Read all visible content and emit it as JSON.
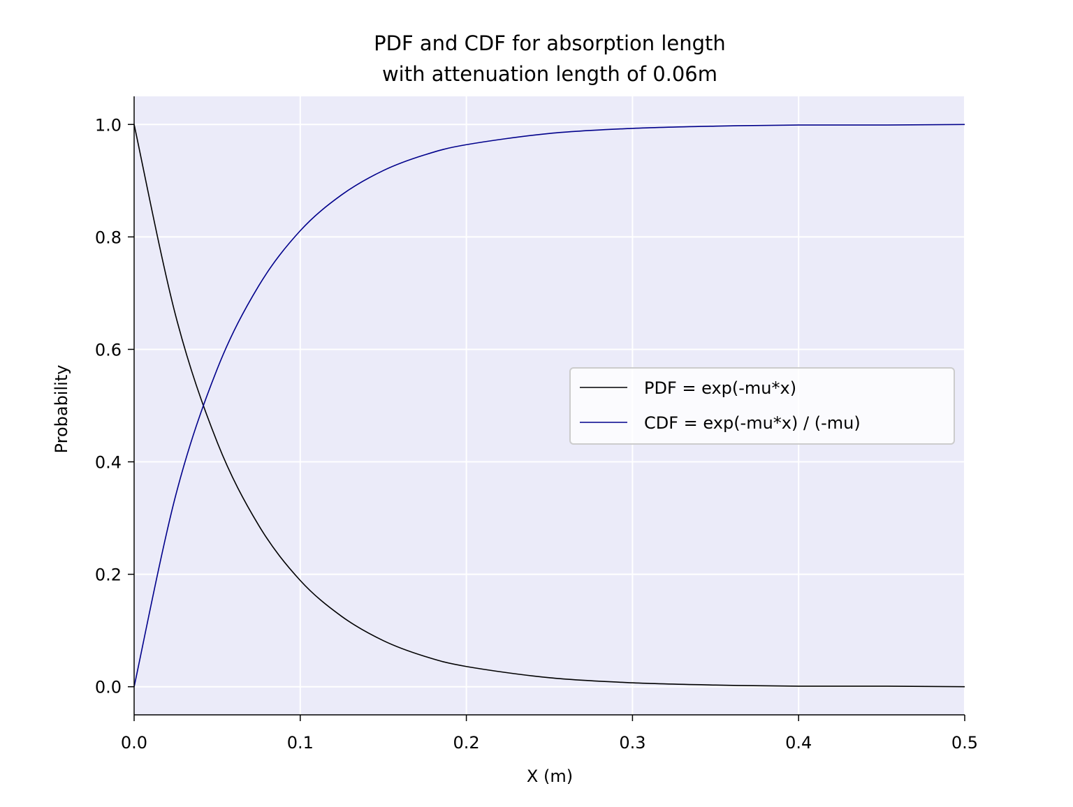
{
  "chart_data": {
    "type": "line",
    "title": "PDF and CDF for absorption length",
    "subtitle": "with attenuation length of 0.06m",
    "xlabel": "X (m)",
    "ylabel": "Probability",
    "xlim": [
      0.0,
      0.5
    ],
    "ylim": [
      -0.05,
      1.05
    ],
    "x_ticks": [
      "0.0",
      "0.1",
      "0.2",
      "0.3",
      "0.4",
      "0.5"
    ],
    "y_ticks": [
      "0.0",
      "0.2",
      "0.4",
      "0.6",
      "0.8",
      "1.0"
    ],
    "grid": true,
    "legend_position": "center-right",
    "background_color": "#ebebf9",
    "grid_color": "#ffffff",
    "series": [
      {
        "name": "PDF = exp(-mu*x)",
        "color": "#000000",
        "x": [
          0.0,
          0.025,
          0.05,
          0.075,
          0.1,
          0.125,
          0.15,
          0.175,
          0.2,
          0.25,
          0.3,
          0.35,
          0.4,
          0.45,
          0.5
        ],
        "values": [
          1.0,
          0.66,
          0.435,
          0.287,
          0.189,
          0.125,
          0.082,
          0.054,
          0.036,
          0.016,
          0.007,
          0.003,
          0.001,
          0.001,
          0.0
        ]
      },
      {
        "name": "CDF = exp(-mu*x) / (-mu)",
        "color": "#00008b",
        "x": [
          0.0,
          0.025,
          0.05,
          0.075,
          0.1,
          0.125,
          0.15,
          0.175,
          0.2,
          0.25,
          0.3,
          0.35,
          0.4,
          0.45,
          0.5
        ],
        "values": [
          0.0,
          0.34,
          0.565,
          0.713,
          0.811,
          0.875,
          0.918,
          0.946,
          0.964,
          0.984,
          0.993,
          0.997,
          0.999,
          0.999,
          1.0
        ]
      }
    ]
  }
}
